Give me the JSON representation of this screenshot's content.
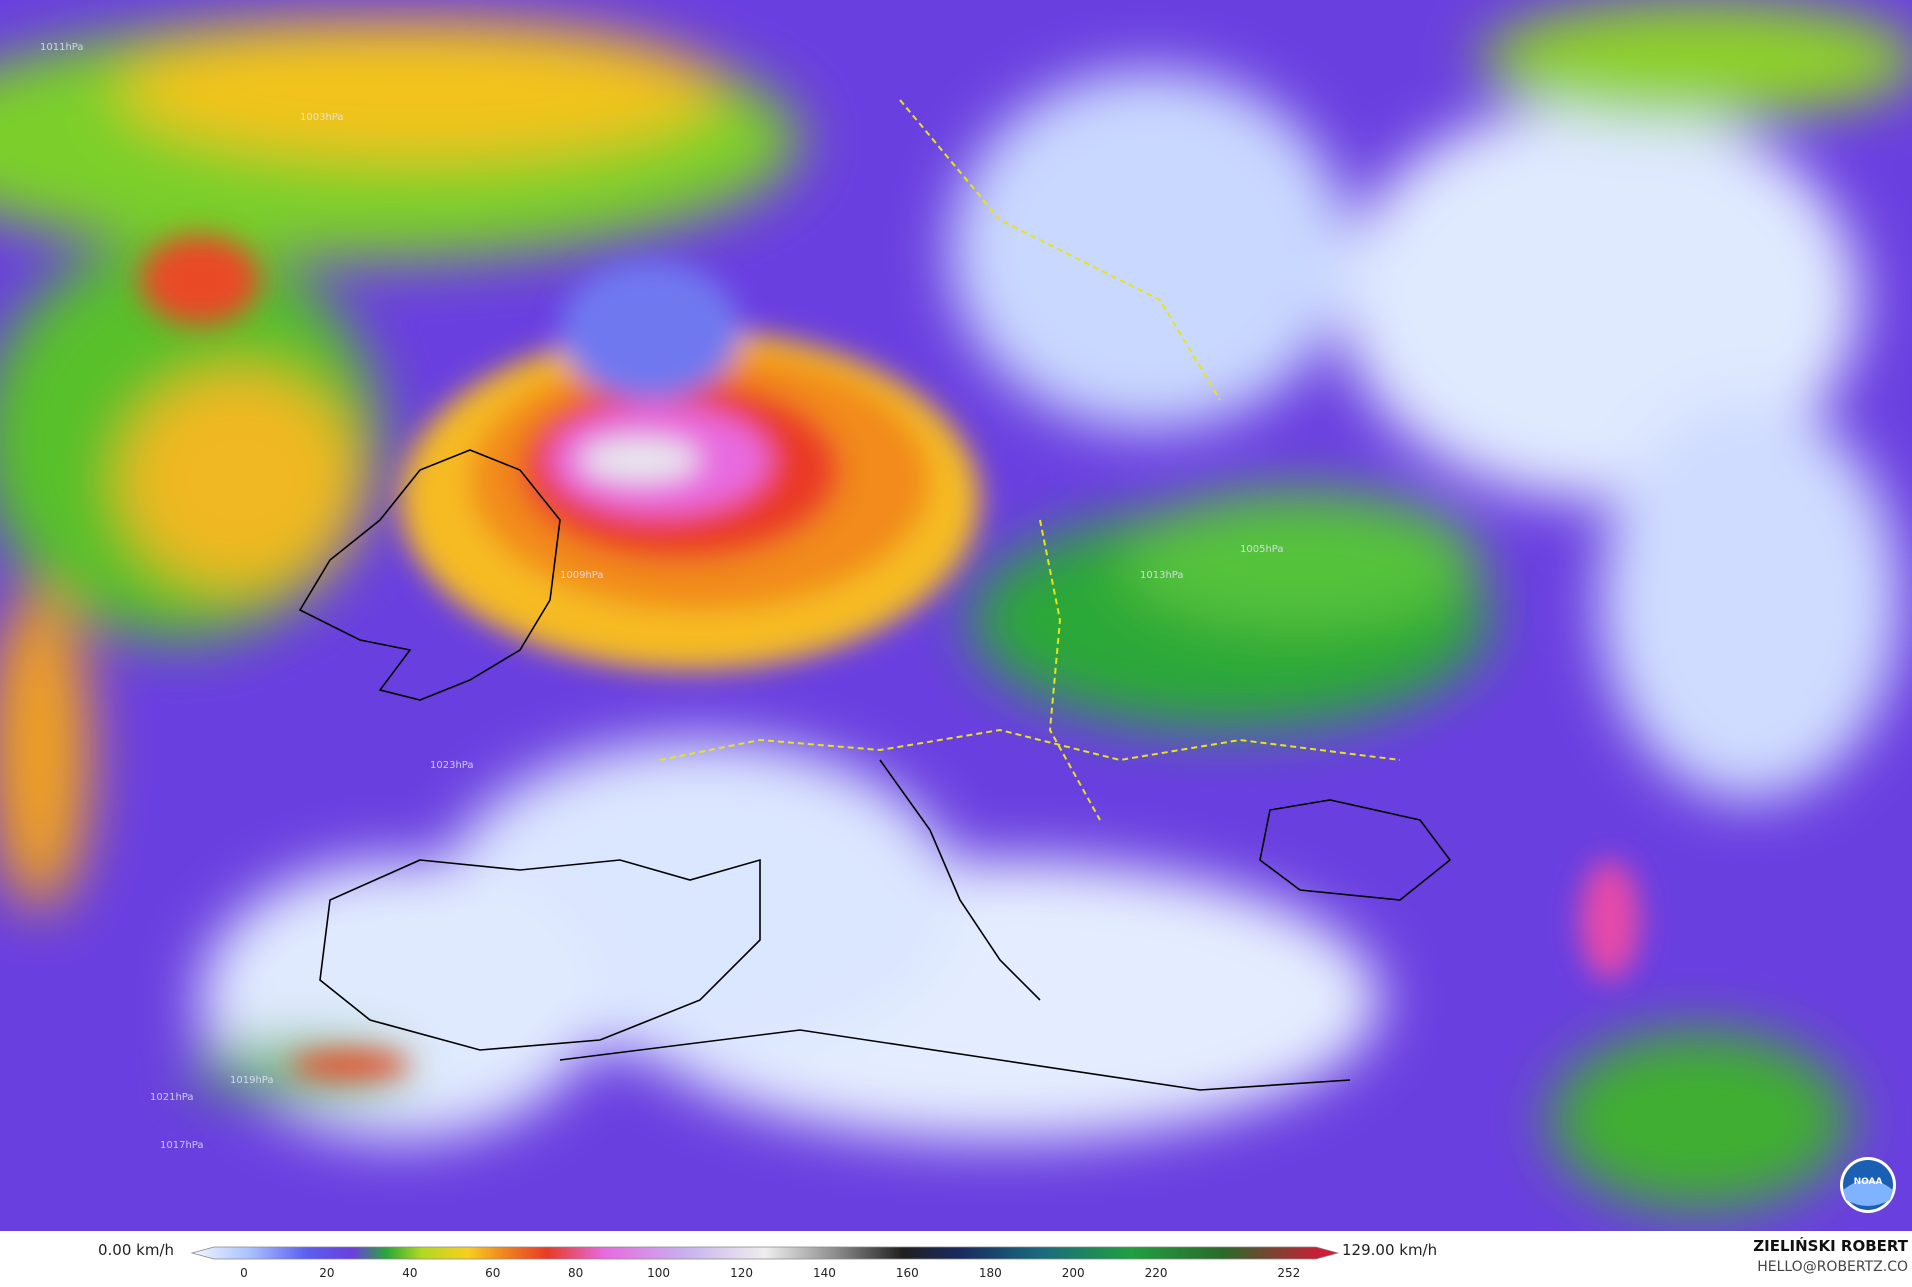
{
  "map": {
    "isobar_labels": [
      "1009hPa",
      "1005hPa",
      "1013hPa",
      "1017hPa",
      "1019hPa",
      "1021hPa",
      "1023hPa",
      "1011hPa",
      "1003hPa"
    ]
  },
  "legend": {
    "min_label": "0.00 km/h",
    "max_label": "129.00 km/h",
    "ticks": [
      0,
      20,
      40,
      60,
      80,
      100,
      120,
      140,
      160,
      180,
      200,
      220,
      252
    ]
  },
  "credit": {
    "name": "ZIELIŃSKI ROBERT",
    "email": "HELLO@ROBERTZ.CO"
  },
  "logo": "NOAA"
}
